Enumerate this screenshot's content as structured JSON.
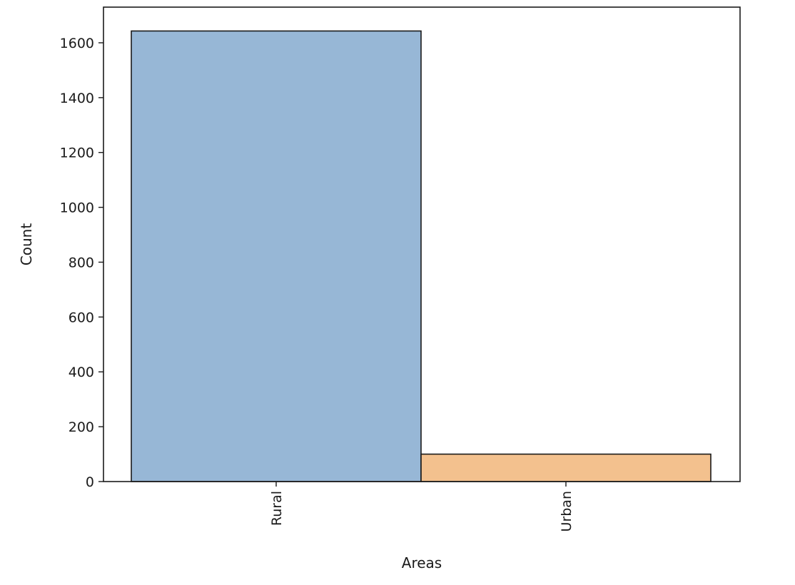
{
  "chart_data": {
    "type": "bar",
    "title": "",
    "xlabel": "Areas",
    "ylabel": "Count",
    "categories": [
      "Rural",
      "Urban"
    ],
    "values": [
      1643,
      100
    ],
    "colors": [
      "#97b7d6",
      "#f3c18e"
    ],
    "edge_color": "#1a1a1a",
    "ylim": [
      0,
      1730
    ],
    "yticks": [
      0,
      200,
      400,
      600,
      800,
      1000,
      1200,
      1400,
      1600
    ],
    "x_tick_rotation_deg": 90,
    "grid": false,
    "legend": "none"
  }
}
